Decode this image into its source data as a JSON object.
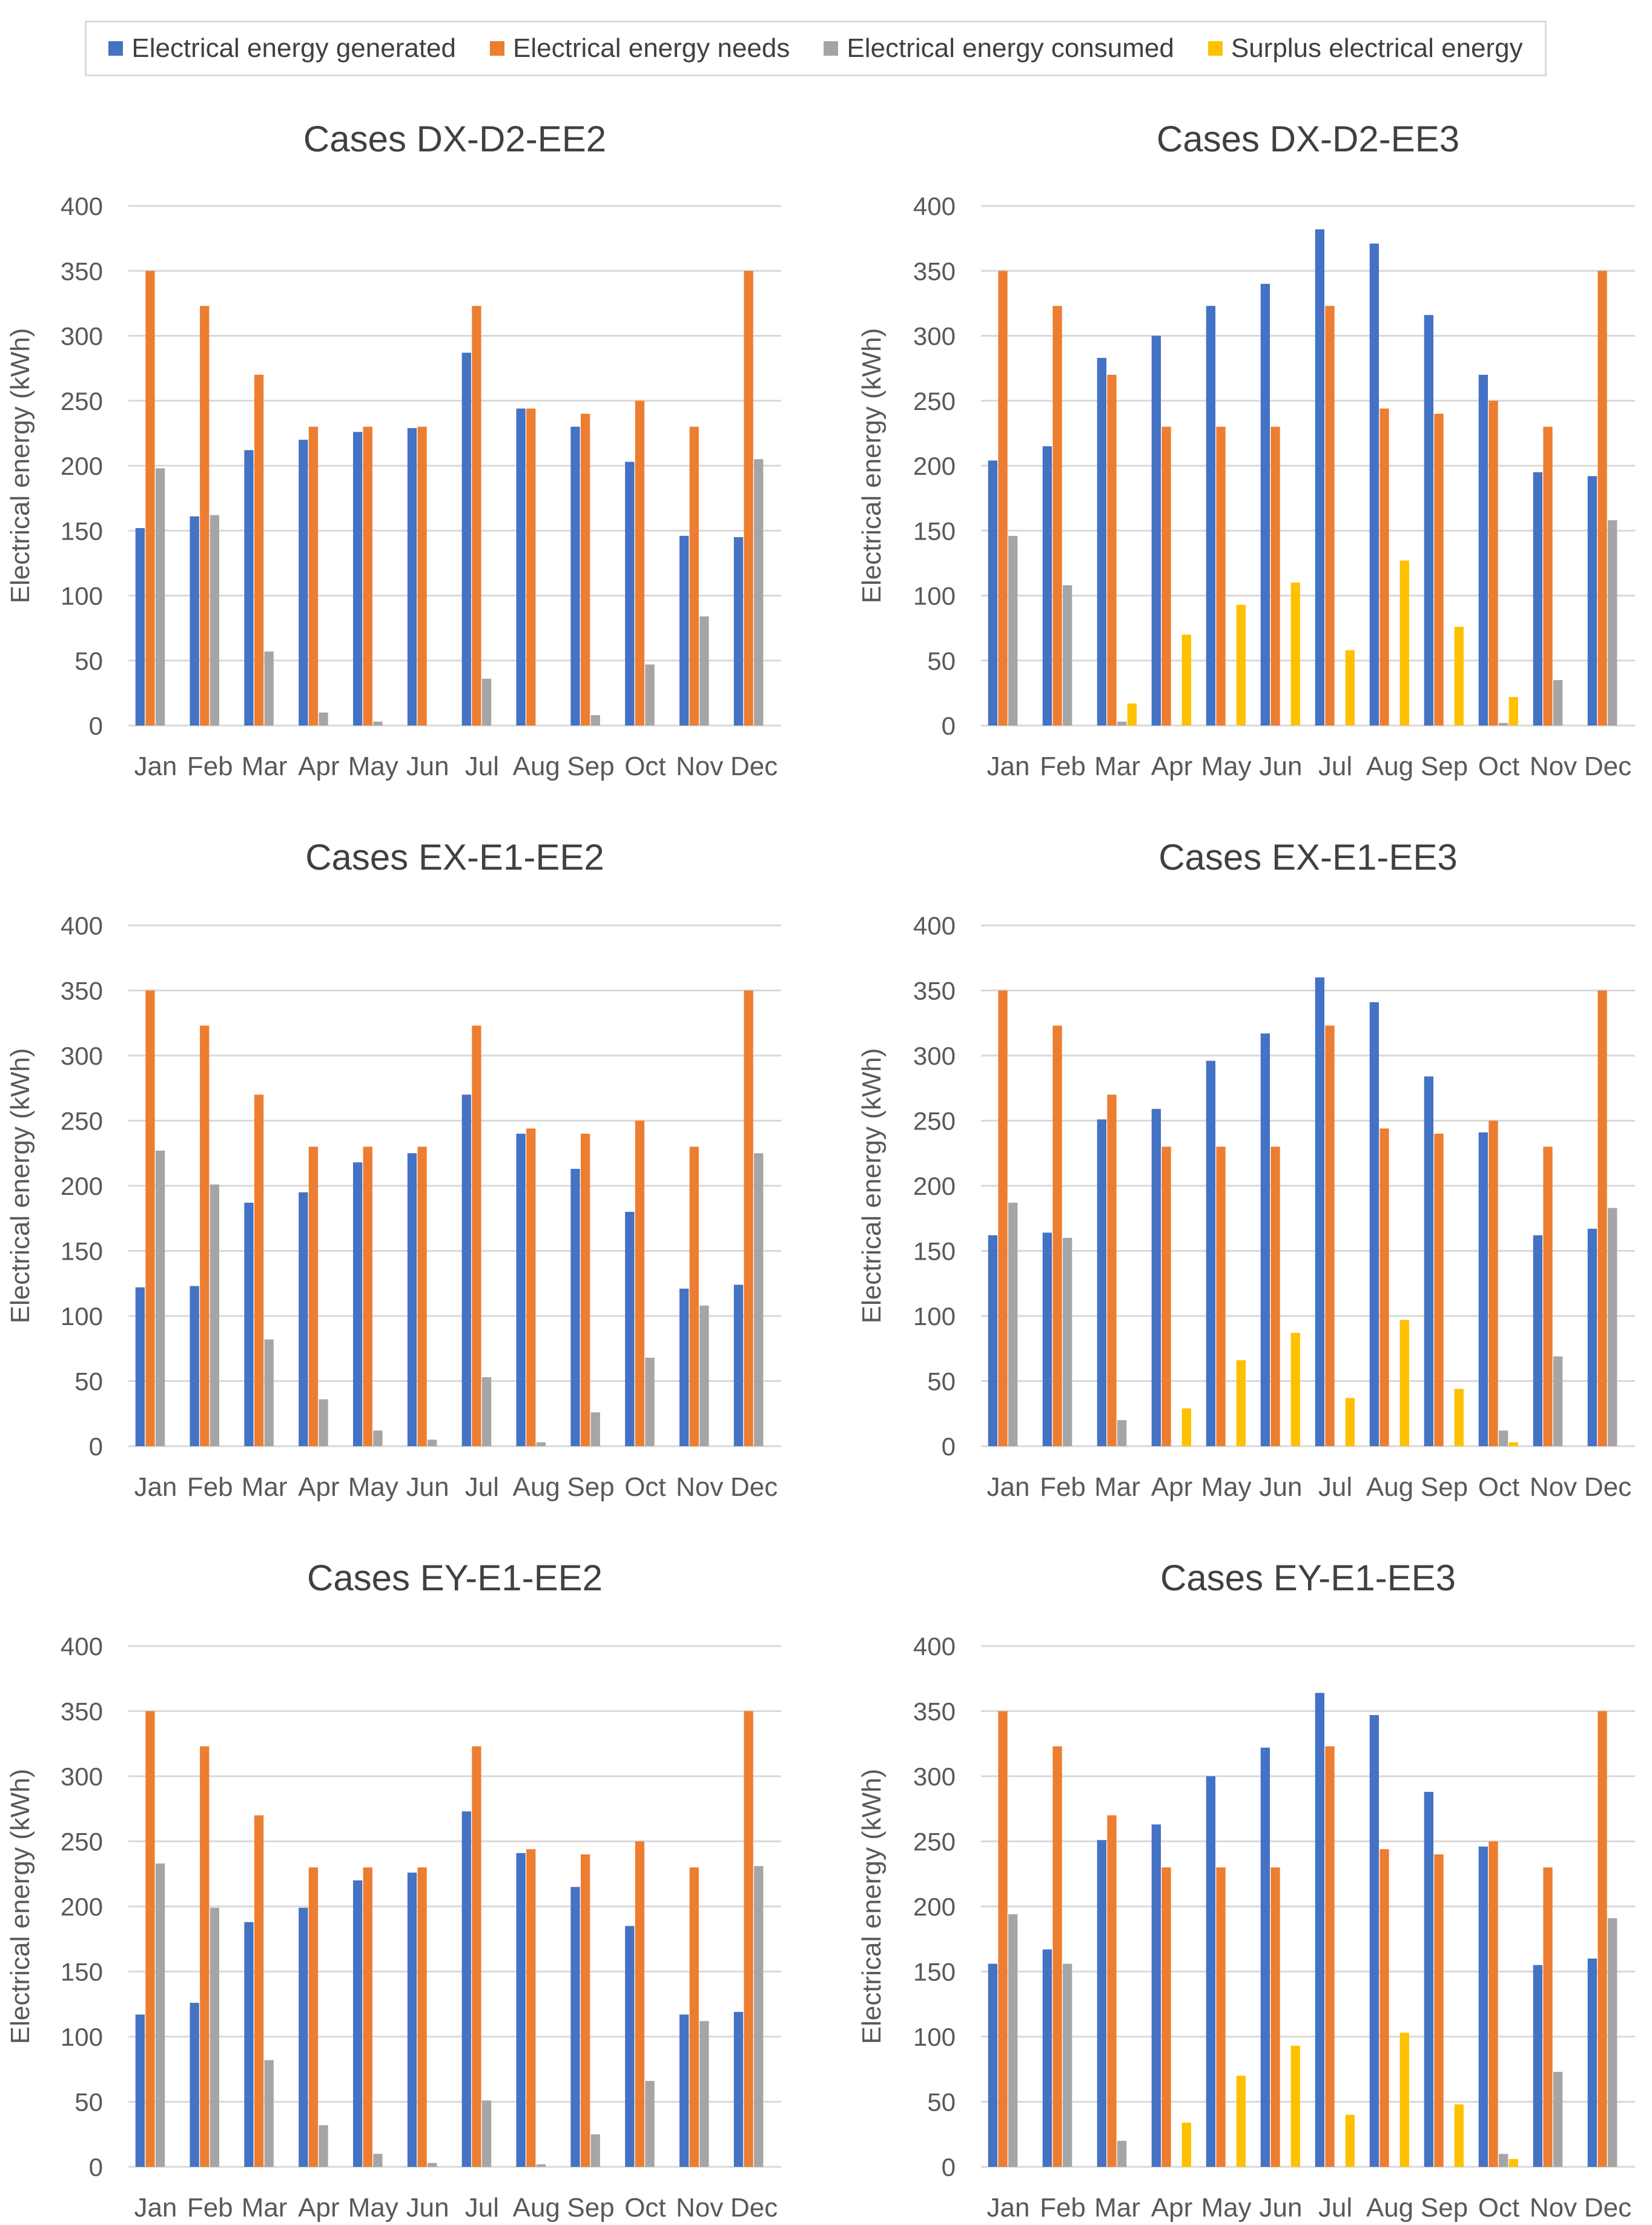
{
  "legend": [
    {
      "label": "Electrical energy generated",
      "color": "#4472c4"
    },
    {
      "label": "Electrical energy needs",
      "color": "#ed7d31"
    },
    {
      "label": "Electrical energy consumed",
      "color": "#a5a5a5"
    },
    {
      "label": "Surplus electrical energy",
      "color": "#ffc000"
    }
  ],
  "chart_data": [
    {
      "type": "bar",
      "title": "Cases DX-D2-EE2",
      "ylabel": "Electrical energy (kWh)",
      "xlabel": "",
      "ylim": [
        0,
        400
      ],
      "yticks": [
        "0",
        "50",
        "100",
        "150",
        "200",
        "250",
        "300",
        "350",
        "400"
      ],
      "categories": [
        "Jan",
        "Feb",
        "Mar",
        "Apr",
        "May",
        "Jun",
        "Jul",
        "Aug",
        "Sep",
        "Oct",
        "Nov",
        "Dec"
      ],
      "series": [
        {
          "name": "Electrical energy generated",
          "values": [
            152,
            161,
            212,
            220,
            226,
            229,
            287,
            244,
            230,
            203,
            146,
            145
          ]
        },
        {
          "name": "Electrical energy needs",
          "values": [
            350,
            323,
            270,
            230,
            230,
            230,
            323,
            244,
            240,
            250,
            230,
            350
          ]
        },
        {
          "name": "Electrical energy consumed",
          "values": [
            198,
            162,
            57,
            10,
            3,
            0,
            36,
            0,
            8,
            47,
            84,
            205
          ]
        },
        {
          "name": "Surplus electrical energy",
          "values": [
            0,
            0,
            0,
            0,
            0,
            0,
            0,
            0,
            0,
            0,
            0,
            0
          ]
        }
      ]
    },
    {
      "type": "bar",
      "title": "Cases DX-D2-EE3",
      "ylabel": "Electrical energy (kWh)",
      "xlabel": "",
      "ylim": [
        0,
        400
      ],
      "yticks": [
        "0",
        "50",
        "100",
        "150",
        "200",
        "250",
        "300",
        "350",
        "400"
      ],
      "categories": [
        "Jan",
        "Feb",
        "Mar",
        "Apr",
        "May",
        "Jun",
        "Jul",
        "Aug",
        "Sep",
        "Oct",
        "Nov",
        "Dec"
      ],
      "series": [
        {
          "name": "Electrical energy generated",
          "values": [
            204,
            215,
            283,
            300,
            323,
            340,
            382,
            371,
            316,
            270,
            195,
            192
          ]
        },
        {
          "name": "Electrical energy needs",
          "values": [
            350,
            323,
            270,
            230,
            230,
            230,
            323,
            244,
            240,
            250,
            230,
            350
          ]
        },
        {
          "name": "Electrical energy consumed",
          "values": [
            146,
            108,
            3,
            0,
            0,
            0,
            0,
            0,
            0,
            2,
            35,
            158
          ]
        },
        {
          "name": "Surplus electrical energy",
          "values": [
            0,
            0,
            17,
            70,
            93,
            110,
            58,
            127,
            76,
            22,
            0,
            0
          ]
        }
      ]
    },
    {
      "type": "bar",
      "title": "Cases EX-E1-EE2",
      "ylabel": "Electrical energy (kWh)",
      "xlabel": "",
      "ylim": [
        0,
        400
      ],
      "yticks": [
        "0",
        "50",
        "100",
        "150",
        "200",
        "250",
        "300",
        "350",
        "400"
      ],
      "categories": [
        "Jan",
        "Feb",
        "Mar",
        "Apr",
        "May",
        "Jun",
        "Jul",
        "Aug",
        "Sep",
        "Oct",
        "Nov",
        "Dec"
      ],
      "series": [
        {
          "name": "Electrical energy generated",
          "values": [
            122,
            123,
            187,
            195,
            218,
            225,
            270,
            240,
            213,
            180,
            121,
            124
          ]
        },
        {
          "name": "Electrical energy needs",
          "values": [
            350,
            323,
            270,
            230,
            230,
            230,
            323,
            244,
            240,
            250,
            230,
            350
          ]
        },
        {
          "name": "Electrical energy consumed",
          "values": [
            227,
            201,
            82,
            36,
            12,
            5,
            53,
            3,
            26,
            68,
            108,
            225
          ]
        },
        {
          "name": "Surplus electrical energy",
          "values": [
            0,
            0,
            0,
            0,
            0,
            0,
            0,
            0,
            0,
            0,
            0,
            0
          ]
        }
      ]
    },
    {
      "type": "bar",
      "title": "Cases EX-E1-EE3",
      "ylabel": "Electrical energy (kWh)",
      "xlabel": "",
      "ylim": [
        0,
        400
      ],
      "yticks": [
        "0",
        "50",
        "100",
        "150",
        "200",
        "250",
        "300",
        "350",
        "400"
      ],
      "categories": [
        "Jan",
        "Feb",
        "Mar",
        "Apr",
        "May",
        "Jun",
        "Jul",
        "Aug",
        "Sep",
        "Oct",
        "Nov",
        "Dec"
      ],
      "series": [
        {
          "name": "Electrical energy generated",
          "values": [
            162,
            164,
            251,
            259,
            296,
            317,
            360,
            341,
            284,
            241,
            162,
            167
          ]
        },
        {
          "name": "Electrical energy needs",
          "values": [
            350,
            323,
            270,
            230,
            230,
            230,
            323,
            244,
            240,
            250,
            230,
            350
          ]
        },
        {
          "name": "Electrical energy consumed",
          "values": [
            187,
            160,
            20,
            0,
            0,
            0,
            0,
            0,
            0,
            12,
            69,
            183
          ]
        },
        {
          "name": "Surplus electrical energy",
          "values": [
            0,
            0,
            0,
            29,
            66,
            87,
            37,
            97,
            44,
            3,
            0,
            0
          ]
        }
      ]
    },
    {
      "type": "bar",
      "title": "Cases EY-E1-EE2",
      "ylabel": "Electrical energy (kWh)",
      "xlabel": "",
      "ylim": [
        0,
        400
      ],
      "yticks": [
        "0",
        "50",
        "100",
        "150",
        "200",
        "250",
        "300",
        "350",
        "400"
      ],
      "categories": [
        "Jan",
        "Feb",
        "Mar",
        "Apr",
        "May",
        "Jun",
        "Jul",
        "Aug",
        "Sep",
        "Oct",
        "Nov",
        "Dec"
      ],
      "series": [
        {
          "name": "Electrical energy generated",
          "values": [
            117,
            126,
            188,
            199,
            220,
            226,
            273,
            241,
            215,
            185,
            117,
            119
          ]
        },
        {
          "name": "Electrical energy needs",
          "values": [
            350,
            323,
            270,
            230,
            230,
            230,
            323,
            244,
            240,
            250,
            230,
            350
          ]
        },
        {
          "name": "Electrical energy consumed",
          "values": [
            233,
            199,
            82,
            32,
            10,
            3,
            51,
            2,
            25,
            66,
            112,
            231
          ]
        },
        {
          "name": "Surplus electrical energy",
          "values": [
            0,
            0,
            0,
            0,
            0,
            0,
            0,
            0,
            0,
            0,
            0,
            0
          ]
        }
      ]
    },
    {
      "type": "bar",
      "title": "Cases EY-E1-EE3",
      "ylabel": "Electrical energy (kWh)",
      "xlabel": "",
      "ylim": [
        0,
        400
      ],
      "yticks": [
        "0",
        "50",
        "100",
        "150",
        "200",
        "250",
        "300",
        "350",
        "400"
      ],
      "categories": [
        "Jan",
        "Feb",
        "Mar",
        "Apr",
        "May",
        "Jun",
        "Jul",
        "Aug",
        "Sep",
        "Oct",
        "Nov",
        "Dec"
      ],
      "series": [
        {
          "name": "Electrical energy generated",
          "values": [
            156,
            167,
            251,
            263,
            300,
            322,
            364,
            347,
            288,
            246,
            155,
            160
          ]
        },
        {
          "name": "Electrical energy needs",
          "values": [
            350,
            323,
            270,
            230,
            230,
            230,
            323,
            244,
            240,
            250,
            230,
            350
          ]
        },
        {
          "name": "Electrical energy consumed",
          "values": [
            194,
            156,
            20,
            0,
            0,
            0,
            0,
            0,
            0,
            10,
            73,
            191
          ]
        },
        {
          "name": "Surplus electrical energy",
          "values": [
            0,
            0,
            0,
            34,
            70,
            93,
            40,
            103,
            48,
            6,
            0,
            0
          ]
        }
      ]
    }
  ]
}
